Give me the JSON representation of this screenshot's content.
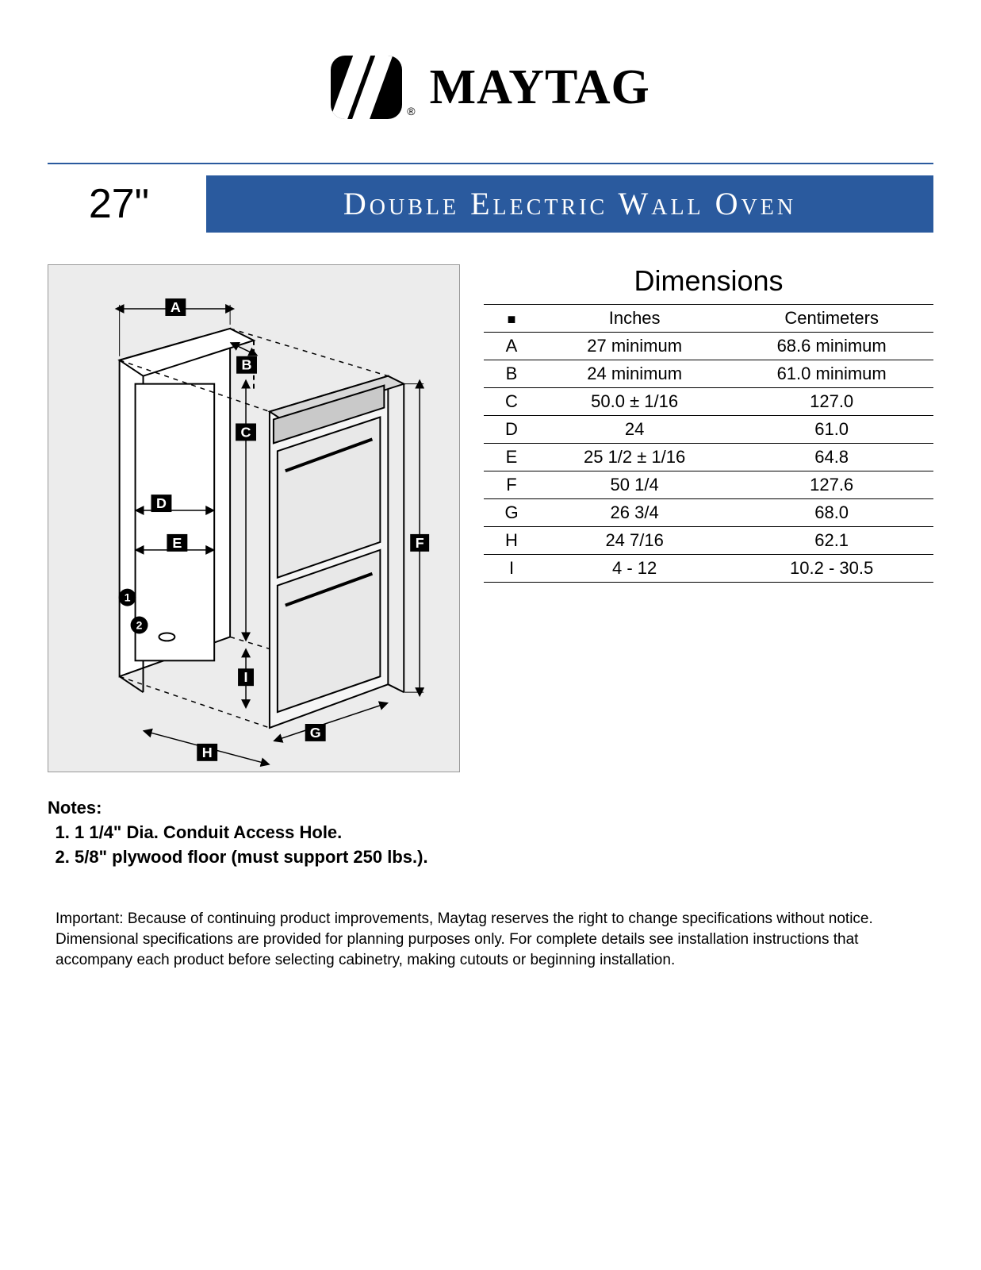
{
  "brand": {
    "name": "MAYTAG",
    "registered_mark": "®"
  },
  "header": {
    "size_label": "27\"",
    "product_title": "Double Electric Wall Oven",
    "accent_color": "#2a5a9e"
  },
  "diagram": {
    "background_color": "#ececec",
    "labels": [
      "A",
      "B",
      "C",
      "D",
      "E",
      "F",
      "G",
      "H",
      "I"
    ],
    "callouts": [
      "1",
      "2"
    ]
  },
  "dimensions_table": {
    "title": "Dimensions",
    "columns": [
      "■",
      "Inches",
      "Centimeters"
    ],
    "rows": [
      {
        "key": "A",
        "inches": "27 minimum",
        "cm": "68.6 minimum"
      },
      {
        "key": "B",
        "inches": "24 minimum",
        "cm": "61.0 minimum"
      },
      {
        "key": "C",
        "inches": "50.0 ± 1/16",
        "cm": "127.0"
      },
      {
        "key": "D",
        "inches": "24",
        "cm": "61.0"
      },
      {
        "key": "E",
        "inches": "25 1/2 ± 1/16",
        "cm": "64.8"
      },
      {
        "key": "F",
        "inches": "50 1/4",
        "cm": "127.6"
      },
      {
        "key": "G",
        "inches": "26 3/4",
        "cm": "68.0"
      },
      {
        "key": "H",
        "inches": "24 7/16",
        "cm": "62.1"
      },
      {
        "key": "I",
        "inches": "4 - 12",
        "cm": "10.2 - 30.5"
      }
    ]
  },
  "notes": {
    "heading": "Notes:",
    "items": [
      "1 1/4\" Dia. Conduit Access Hole.",
      "5/8\" plywood floor (must support 250 lbs.)."
    ]
  },
  "disclaimer": "Important: Because of continuing product improvements, Maytag reserves the right to change specifications without notice. Dimensional specifications are provided for planning purposes only. For complete details see installation instructions that accompany each product before selecting cabinetry, making cutouts or beginning installation."
}
